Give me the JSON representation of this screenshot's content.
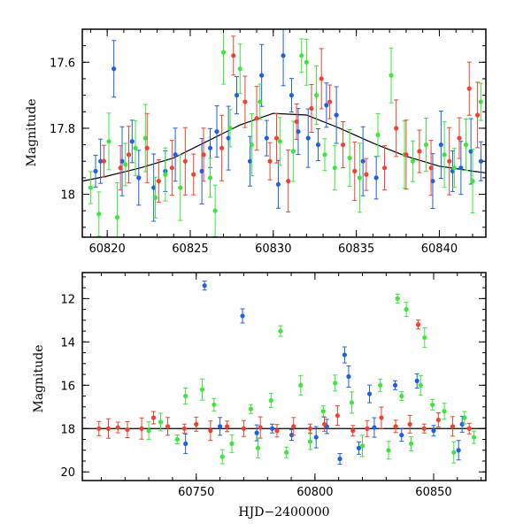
{
  "colors": {
    "blue": "#1f5fe8",
    "green": "#3ce63c",
    "red": "#f2422e",
    "curve": "#000000"
  },
  "chart_data": [
    {
      "id": "top",
      "type": "scatter",
      "title": "",
      "xlabel": "",
      "ylabel": "Magnitude",
      "xlim": [
        60818.5,
        60842.8
      ],
      "ylim": [
        17.5,
        18.13
      ],
      "y_inverted": true,
      "x_ticks": [
        60820,
        60825,
        60830,
        60835,
        60840
      ],
      "x_tick_labels": [
        "60820",
        "60825",
        "60830",
        "60835",
        "60840"
      ],
      "y_ticks": [
        17.6,
        17.8,
        18.0
      ],
      "y_tick_labels": [
        "17.6",
        "17.8",
        "18"
      ],
      "model_curve": {
        "points": [
          [
            60818.5,
            17.96
          ],
          [
            60820,
            17.945
          ],
          [
            60822,
            17.92
          ],
          [
            60824,
            17.89
          ],
          [
            60826,
            17.84
          ],
          [
            60828,
            17.79
          ],
          [
            60830,
            17.755
          ],
          [
            60832,
            17.76
          ],
          [
            60834,
            17.8
          ],
          [
            60836,
            17.845
          ],
          [
            60838,
            17.885
          ],
          [
            60840,
            17.915
          ],
          [
            60842,
            17.93
          ],
          [
            60842.8,
            17.935
          ]
        ]
      },
      "series": [
        {
          "color": "blue",
          "values": [
            [
              60819.3,
              17.93
            ],
            [
              60819.6,
              17.9
            ],
            [
              60820.4,
              17.62
            ],
            [
              60820.9,
              17.9
            ],
            [
              60821.5,
              17.84
            ],
            [
              60821.9,
              17.95
            ],
            [
              60822.8,
              17.98
            ],
            [
              60823.5,
              17.93
            ],
            [
              60824.1,
              17.88
            ],
            [
              60825.7,
              17.93
            ],
            [
              60826.2,
              17.86
            ],
            [
              60826.6,
              17.81
            ],
            [
              60827.3,
              17.83
            ],
            [
              60827.8,
              17.7
            ],
            [
              60828.6,
              17.9
            ],
            [
              60829.3,
              17.64
            ],
            [
              60829.6,
              17.83
            ],
            [
              60830.3,
              17.97
            ],
            [
              60830.6,
              17.58
            ],
            [
              60831.1,
              17.7
            ],
            [
              60831.5,
              17.81
            ],
            [
              60832.1,
              17.83
            ],
            [
              60832.7,
              17.85
            ],
            [
              60833.2,
              17.73
            ],
            [
              60833.8,
              17.76
            ],
            [
              60835.4,
              17.9
            ],
            [
              60836.2,
              17.95
            ],
            [
              60839.6,
              17.96
            ],
            [
              60840.1,
              17.85
            ],
            [
              60840.8,
              17.93
            ],
            [
              60841.3,
              17.92
            ],
            [
              60841.9,
              17.87
            ],
            [
              60842.5,
              17.9
            ]
          ]
        },
        {
          "color": "green",
          "values": [
            [
              60819.0,
              17.98
            ],
            [
              60819.5,
              18.06
            ],
            [
              60820.1,
              17.84
            ],
            [
              60820.6,
              18.07
            ],
            [
              60821.1,
              17.91
            ],
            [
              60821.7,
              17.86
            ],
            [
              60822.3,
              17.83
            ],
            [
              60822.9,
              18.01
            ],
            [
              60823.5,
              17.94
            ],
            [
              60824.4,
              17.98
            ],
            [
              60826.2,
              17.95
            ],
            [
              60826.5,
              18.05
            ],
            [
              60827.0,
              17.57
            ],
            [
              60827.4,
              17.8
            ],
            [
              60828.0,
              17.62
            ],
            [
              60828.7,
              17.85
            ],
            [
              60829.2,
              17.72
            ],
            [
              60830.4,
              17.84
            ],
            [
              60831.2,
              17.87
            ],
            [
              60831.7,
              17.58
            ],
            [
              60832.0,
              17.6
            ],
            [
              60832.6,
              17.7
            ],
            [
              60833.1,
              17.88
            ],
            [
              60833.7,
              17.92
            ],
            [
              60834.6,
              17.89
            ],
            [
              60835.2,
              17.95
            ],
            [
              60836.3,
              17.82
            ],
            [
              60837.1,
              17.64
            ],
            [
              60837.9,
              17.88
            ],
            [
              60838.4,
              17.9
            ],
            [
              60839.2,
              17.85
            ],
            [
              60840.3,
              17.88
            ],
            [
              60840.9,
              17.92
            ],
            [
              60841.6,
              17.85
            ],
            [
              60842.0,
              17.96
            ],
            [
              60842.5,
              17.72
            ]
          ]
        },
        {
          "color": "red",
          "values": [
            [
              60819.8,
              17.9
            ],
            [
              60820.8,
              17.92
            ],
            [
              60821.3,
              17.88
            ],
            [
              60822.4,
              17.86
            ],
            [
              60823.1,
              17.96
            ],
            [
              60823.9,
              17.92
            ],
            [
              60824.7,
              17.9
            ],
            [
              60825.2,
              17.94
            ],
            [
              60825.8,
              17.88
            ],
            [
              60826.9,
              17.86
            ],
            [
              60827.6,
              17.58
            ],
            [
              60828.3,
              17.72
            ],
            [
              60829.0,
              17.77
            ],
            [
              60829.8,
              17.9
            ],
            [
              60830.2,
              17.83
            ],
            [
              60830.9,
              17.96
            ],
            [
              60831.4,
              17.78
            ],
            [
              60832.3,
              17.74
            ],
            [
              60832.9,
              17.65
            ],
            [
              60833.4,
              17.72
            ],
            [
              60834.2,
              17.85
            ],
            [
              60834.9,
              17.93
            ],
            [
              60835.6,
              17.94
            ],
            [
              60836.7,
              17.92
            ],
            [
              60837.4,
              17.8
            ],
            [
              60838.0,
              17.88
            ],
            [
              60838.8,
              17.87
            ],
            [
              60839.5,
              17.92
            ],
            [
              60840.6,
              17.9
            ],
            [
              60841.2,
              17.83
            ],
            [
              60841.8,
              17.68
            ],
            [
              60842.3,
              17.76
            ]
          ]
        }
      ]
    },
    {
      "id": "bottom",
      "type": "scatter",
      "title": "",
      "xlabel": "HJD−2400000",
      "ylabel": "Magnitude",
      "xlim": [
        60702,
        60872
      ],
      "ylim": [
        10.8,
        20.4
      ],
      "y_inverted": true,
      "x_ticks": [
        60750,
        60800,
        60850
      ],
      "x_tick_labels": [
        "60750",
        "60800",
        "60850"
      ],
      "y_ticks": [
        12,
        14,
        16,
        18,
        20
      ],
      "y_tick_labels": [
        "12",
        "14",
        "16",
        "18",
        "20"
      ],
      "reference_line": {
        "y": 18.0
      },
      "series": [
        {
          "color": "blue",
          "values": [
            [
              60753.5,
              11.4
            ],
            [
              60769.5,
              12.8
            ],
            [
              60745.5,
              18.7
            ],
            [
              60790.2,
              18.3
            ],
            [
              60812.5,
              14.6
            ],
            [
              60814.2,
              15.6
            ],
            [
              60818.5,
              18.9
            ],
            [
              60823.0,
              16.4
            ],
            [
              60833.8,
              16.0
            ],
            [
              60843.0,
              15.8
            ],
            [
              60860.5,
              19.0
            ],
            [
              60810.5,
              19.4
            ],
            [
              60775.5,
              18.2
            ],
            [
              60800.5,
              18.4
            ],
            [
              60836.5,
              18.3
            ],
            [
              60760.0,
              17.9
            ],
            [
              60782.0,
              18.0
            ],
            [
              60805.0,
              17.9
            ],
            [
              60825.0,
              17.95
            ],
            [
              60850.0,
              18.1
            ],
            [
              60862.0,
              17.8
            ]
          ]
        },
        {
          "color": "green",
          "values": [
            [
              60834.8,
              12.0
            ],
            [
              60838.5,
              12.5
            ],
            [
              60846.2,
              13.8
            ],
            [
              60785.5,
              13.5
            ],
            [
              60745.5,
              16.5
            ],
            [
              60752.5,
              16.2
            ],
            [
              60757.5,
              16.9
            ],
            [
              60765.0,
              18.7
            ],
            [
              60773.0,
              17.1
            ],
            [
              60781.5,
              16.7
            ],
            [
              60794.0,
              16.0
            ],
            [
              60803.5,
              17.2
            ],
            [
              60808.5,
              15.9
            ],
            [
              60815.5,
              16.8
            ],
            [
              60827.5,
              16.0
            ],
            [
              60831.0,
              19.0
            ],
            [
              60836.5,
              16.5
            ],
            [
              60840.5,
              18.7
            ],
            [
              60844.5,
              16.0
            ],
            [
              60849.5,
              16.9
            ],
            [
              60854.5,
              17.2
            ],
            [
              60858.5,
              19.1
            ],
            [
              60863.0,
              17.5
            ],
            [
              60735.0,
              17.7
            ],
            [
              60742.0,
              18.5
            ],
            [
              60761.0,
              19.3
            ],
            [
              60776.0,
              18.9
            ],
            [
              60788.0,
              19.1
            ],
            [
              60798.0,
              18.6
            ],
            [
              60820.0,
              18.8
            ],
            [
              60867.0,
              18.4
            ],
            [
              60730.0,
              18.1
            ]
          ]
        },
        {
          "color": "red",
          "values": [
            [
              60843.5,
              13.2
            ],
            [
              60709.0,
              18.0
            ],
            [
              60713.0,
              18.0
            ],
            [
              60717.0,
              17.95
            ],
            [
              60721.0,
              18.05
            ],
            [
              60727.0,
              18.0
            ],
            [
              60732.0,
              17.5
            ],
            [
              60738.0,
              17.9
            ],
            [
              60745.0,
              18.0
            ],
            [
              60750.0,
              17.8
            ],
            [
              60756.0,
              18.1
            ],
            [
              60763.0,
              17.9
            ],
            [
              60770.0,
              18.0
            ],
            [
              60777.0,
              17.95
            ],
            [
              60784.0,
              18.1
            ],
            [
              60791.0,
              17.9
            ],
            [
              60798.0,
              18.0
            ],
            [
              60804.0,
              17.8
            ],
            [
              60809.5,
              17.4
            ],
            [
              60816.0,
              18.1
            ],
            [
              60822.0,
              18.0
            ],
            [
              60828.0,
              17.5
            ],
            [
              60834.0,
              17.9
            ],
            [
              60840.0,
              17.8
            ],
            [
              60846.0,
              18.0
            ],
            [
              60852.0,
              17.6
            ],
            [
              60858.0,
              17.9
            ],
            [
              60865.0,
              18.0
            ]
          ]
        }
      ]
    }
  ]
}
